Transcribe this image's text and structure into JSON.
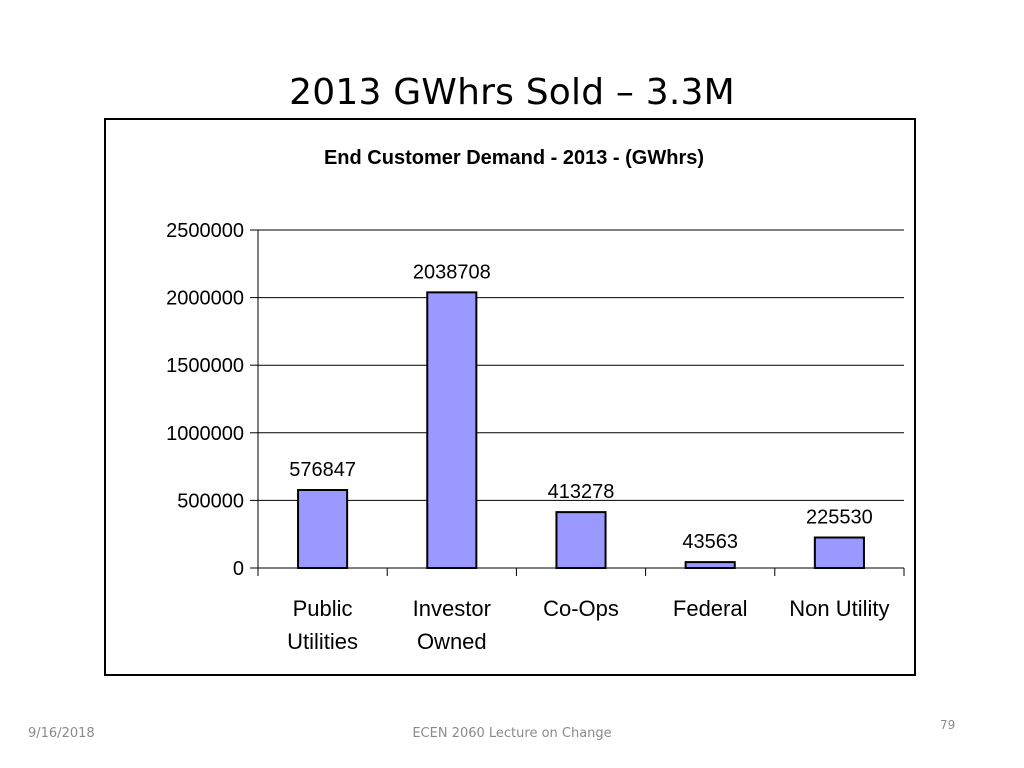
{
  "slide": {
    "title": "2013 GWhrs Sold – 3.3M",
    "footer_date": "9/16/2018",
    "footer_center": "ECEN 2060 Lecture on Change",
    "page_number": "79"
  },
  "chart_data": {
    "type": "bar",
    "title": "End Customer Demand - 2013 - (GWhrs)",
    "categories": [
      [
        "Public",
        "Utilities"
      ],
      [
        "Investor",
        "Owned"
      ],
      [
        "Co-Ops"
      ],
      [
        "Federal"
      ],
      [
        "Non Utility"
      ]
    ],
    "values": [
      576847,
      2038708,
      413278,
      43563,
      225530
    ],
    "data_labels": [
      "576847",
      "2038708",
      "413278",
      "43563",
      "225530"
    ],
    "ylim": [
      0,
      2500000
    ],
    "yticks": [
      "0",
      "500000",
      "1000000",
      "1500000",
      "2000000",
      "2500000"
    ],
    "grid": true,
    "bar_color": "#9999ff",
    "bar_stroke": "#000000",
    "xlabel": "",
    "ylabel": ""
  }
}
